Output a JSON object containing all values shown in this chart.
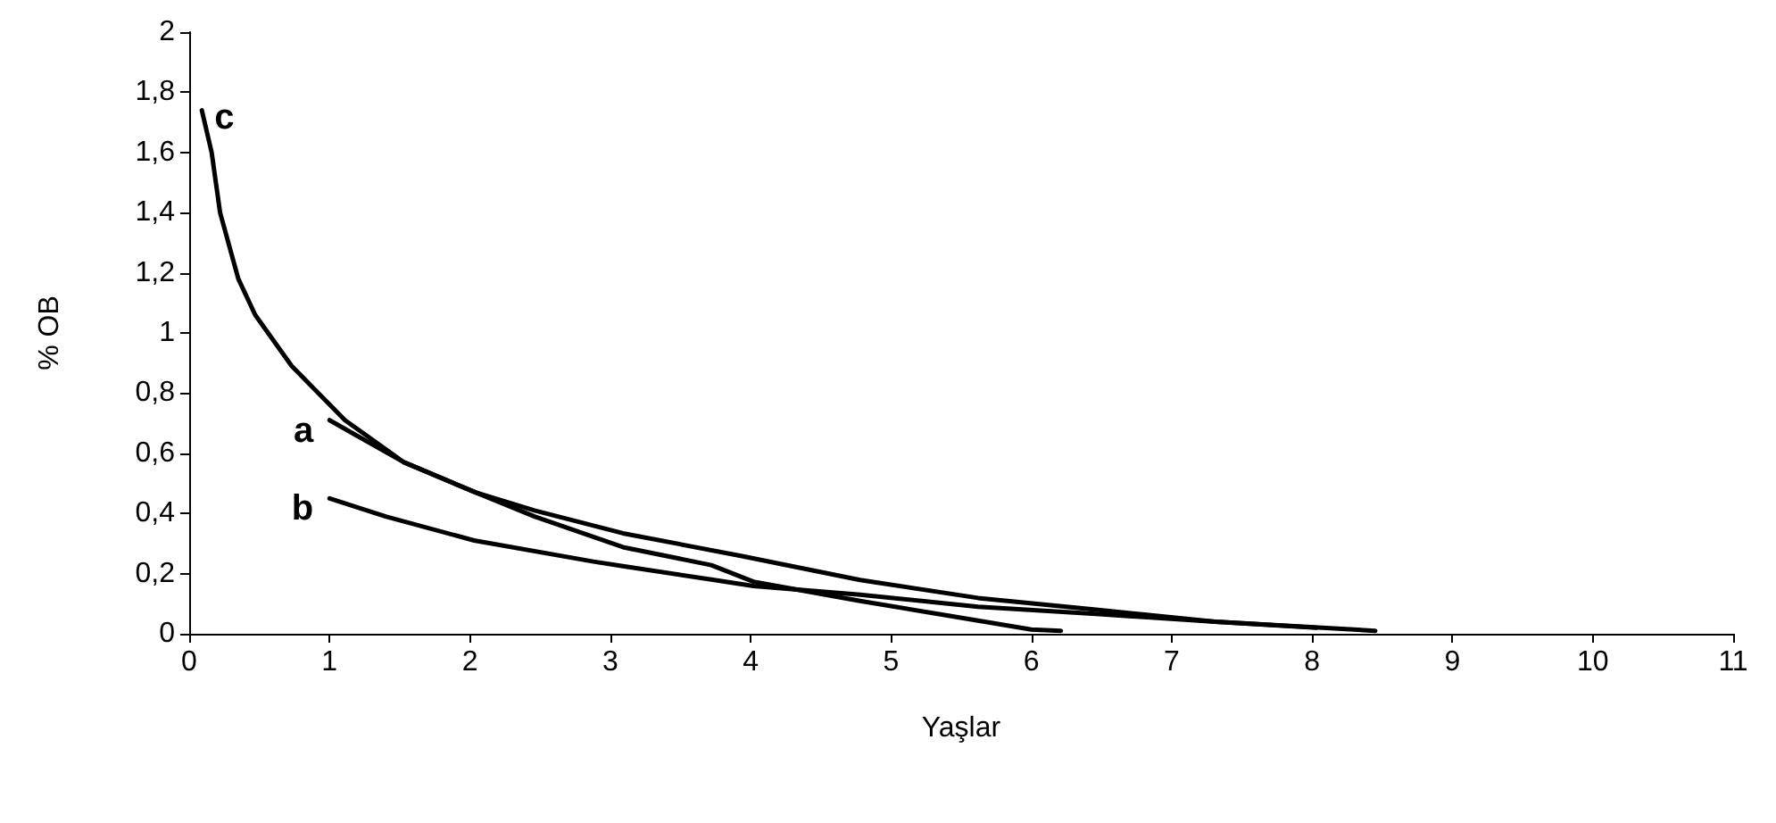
{
  "chart_data": {
    "type": "line",
    "xlabel": "Yaşlar",
    "ylabel": "% OB",
    "xlim": [
      0,
      11
    ],
    "xticks": [
      0,
      1,
      2,
      3,
      4,
      5,
      6,
      7,
      8,
      9,
      10,
      11
    ],
    "ylim": [
      0,
      2
    ],
    "yticks": [
      0,
      {
        "value": 0.2,
        "label": "0,2"
      },
      {
        "value": 0.4,
        "label": "0,4"
      },
      {
        "value": 0.6,
        "label": "0,6"
      },
      {
        "value": 0.8,
        "label": "0,8"
      },
      1,
      {
        "value": 1.2,
        "label": "1,2"
      },
      {
        "value": 1.4,
        "label": "1,4"
      },
      {
        "value": 1.6,
        "label": "1,6"
      },
      {
        "value": 1.8,
        "label": "1,8"
      },
      2
    ],
    "grid": false,
    "legend": false,
    "marker": "none",
    "line_style": "solid",
    "series": [
      {
        "name": "a",
        "color": "#000000",
        "x": [
          1.0,
          1.53,
          2.04,
          2.46,
          3.09,
          3.93,
          4.78,
          5.62,
          6.46,
          7.31,
          8.45
        ],
        "values": [
          0.71,
          0.57,
          0.47,
          0.41,
          0.334,
          0.259,
          0.179,
          0.119,
          0.08,
          0.04,
          0.01
        ]
      },
      {
        "name": "b",
        "color": "#000000",
        "x": [
          1.0,
          1.4,
          2.03,
          2.88,
          3.09,
          3.72,
          4.02,
          4.78,
          5.62,
          6.46,
          7.31,
          8.03
        ],
        "values": [
          0.45,
          0.39,
          0.31,
          0.24,
          0.225,
          0.18,
          0.159,
          0.13,
          0.09,
          0.066,
          0.04,
          0.02
        ]
      },
      {
        "name": "c",
        "color": "#000000",
        "x": [
          0.09,
          0.16,
          0.22,
          0.35,
          0.47,
          0.73,
          1.11,
          1.53,
          2.04,
          2.46,
          3.09,
          3.72,
          4.02,
          4.78,
          5.41,
          6.0,
          6.21
        ],
        "values": [
          1.74,
          1.6,
          1.4,
          1.18,
          1.06,
          0.89,
          0.71,
          0.57,
          0.47,
          0.39,
          0.288,
          0.228,
          0.173,
          0.109,
          0.06,
          0.014,
          0.01
        ]
      }
    ]
  }
}
